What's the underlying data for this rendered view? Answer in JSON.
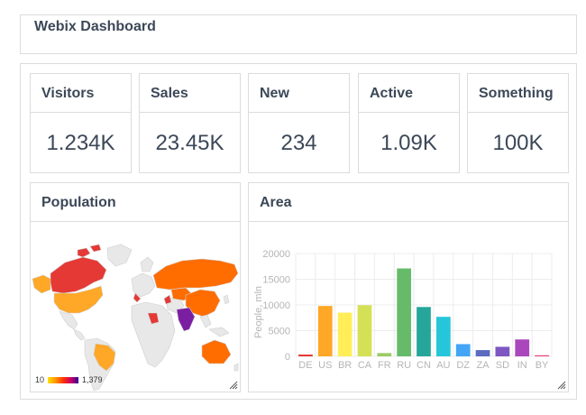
{
  "header": {
    "title": "Webix Dashboard"
  },
  "stats": [
    {
      "label": "Visitors",
      "value": "1.234K"
    },
    {
      "label": "Sales",
      "value": "23.45K"
    },
    {
      "label": "New",
      "value": "234"
    },
    {
      "label": "Active",
      "value": "1.09K"
    },
    {
      "label": "Something",
      "value": "100K"
    }
  ],
  "population": {
    "title": "Population",
    "legend_min": "10",
    "legend_max": "1,379"
  },
  "area": {
    "title": "Area"
  },
  "chart_data": {
    "type": "bar",
    "ylabel": "People, mln",
    "ylim": [
      0,
      20000
    ],
    "yticks": [
      "20000",
      "15000",
      "10000",
      "5000",
      "0"
    ],
    "categories": [
      "DE",
      "US",
      "BR",
      "CA",
      "FR",
      "RU",
      "CN",
      "AU",
      "DZ",
      "ZA",
      "SD",
      "IN",
      "BY"
    ],
    "values": [
      350,
      9800,
      8500,
      9950,
      640,
      17100,
      9600,
      7690,
      2380,
      1220,
      1860,
      3290,
      210
    ],
    "colors": [
      "#e53935",
      "#ffa726",
      "#ffee58",
      "#d4e157",
      "#9ccc65",
      "#66bb6a",
      "#26a69a",
      "#26c6da",
      "#42a5f5",
      "#5c6bc0",
      "#7e57c2",
      "#ab47bc",
      "#ec407a"
    ],
    "grid": true
  }
}
